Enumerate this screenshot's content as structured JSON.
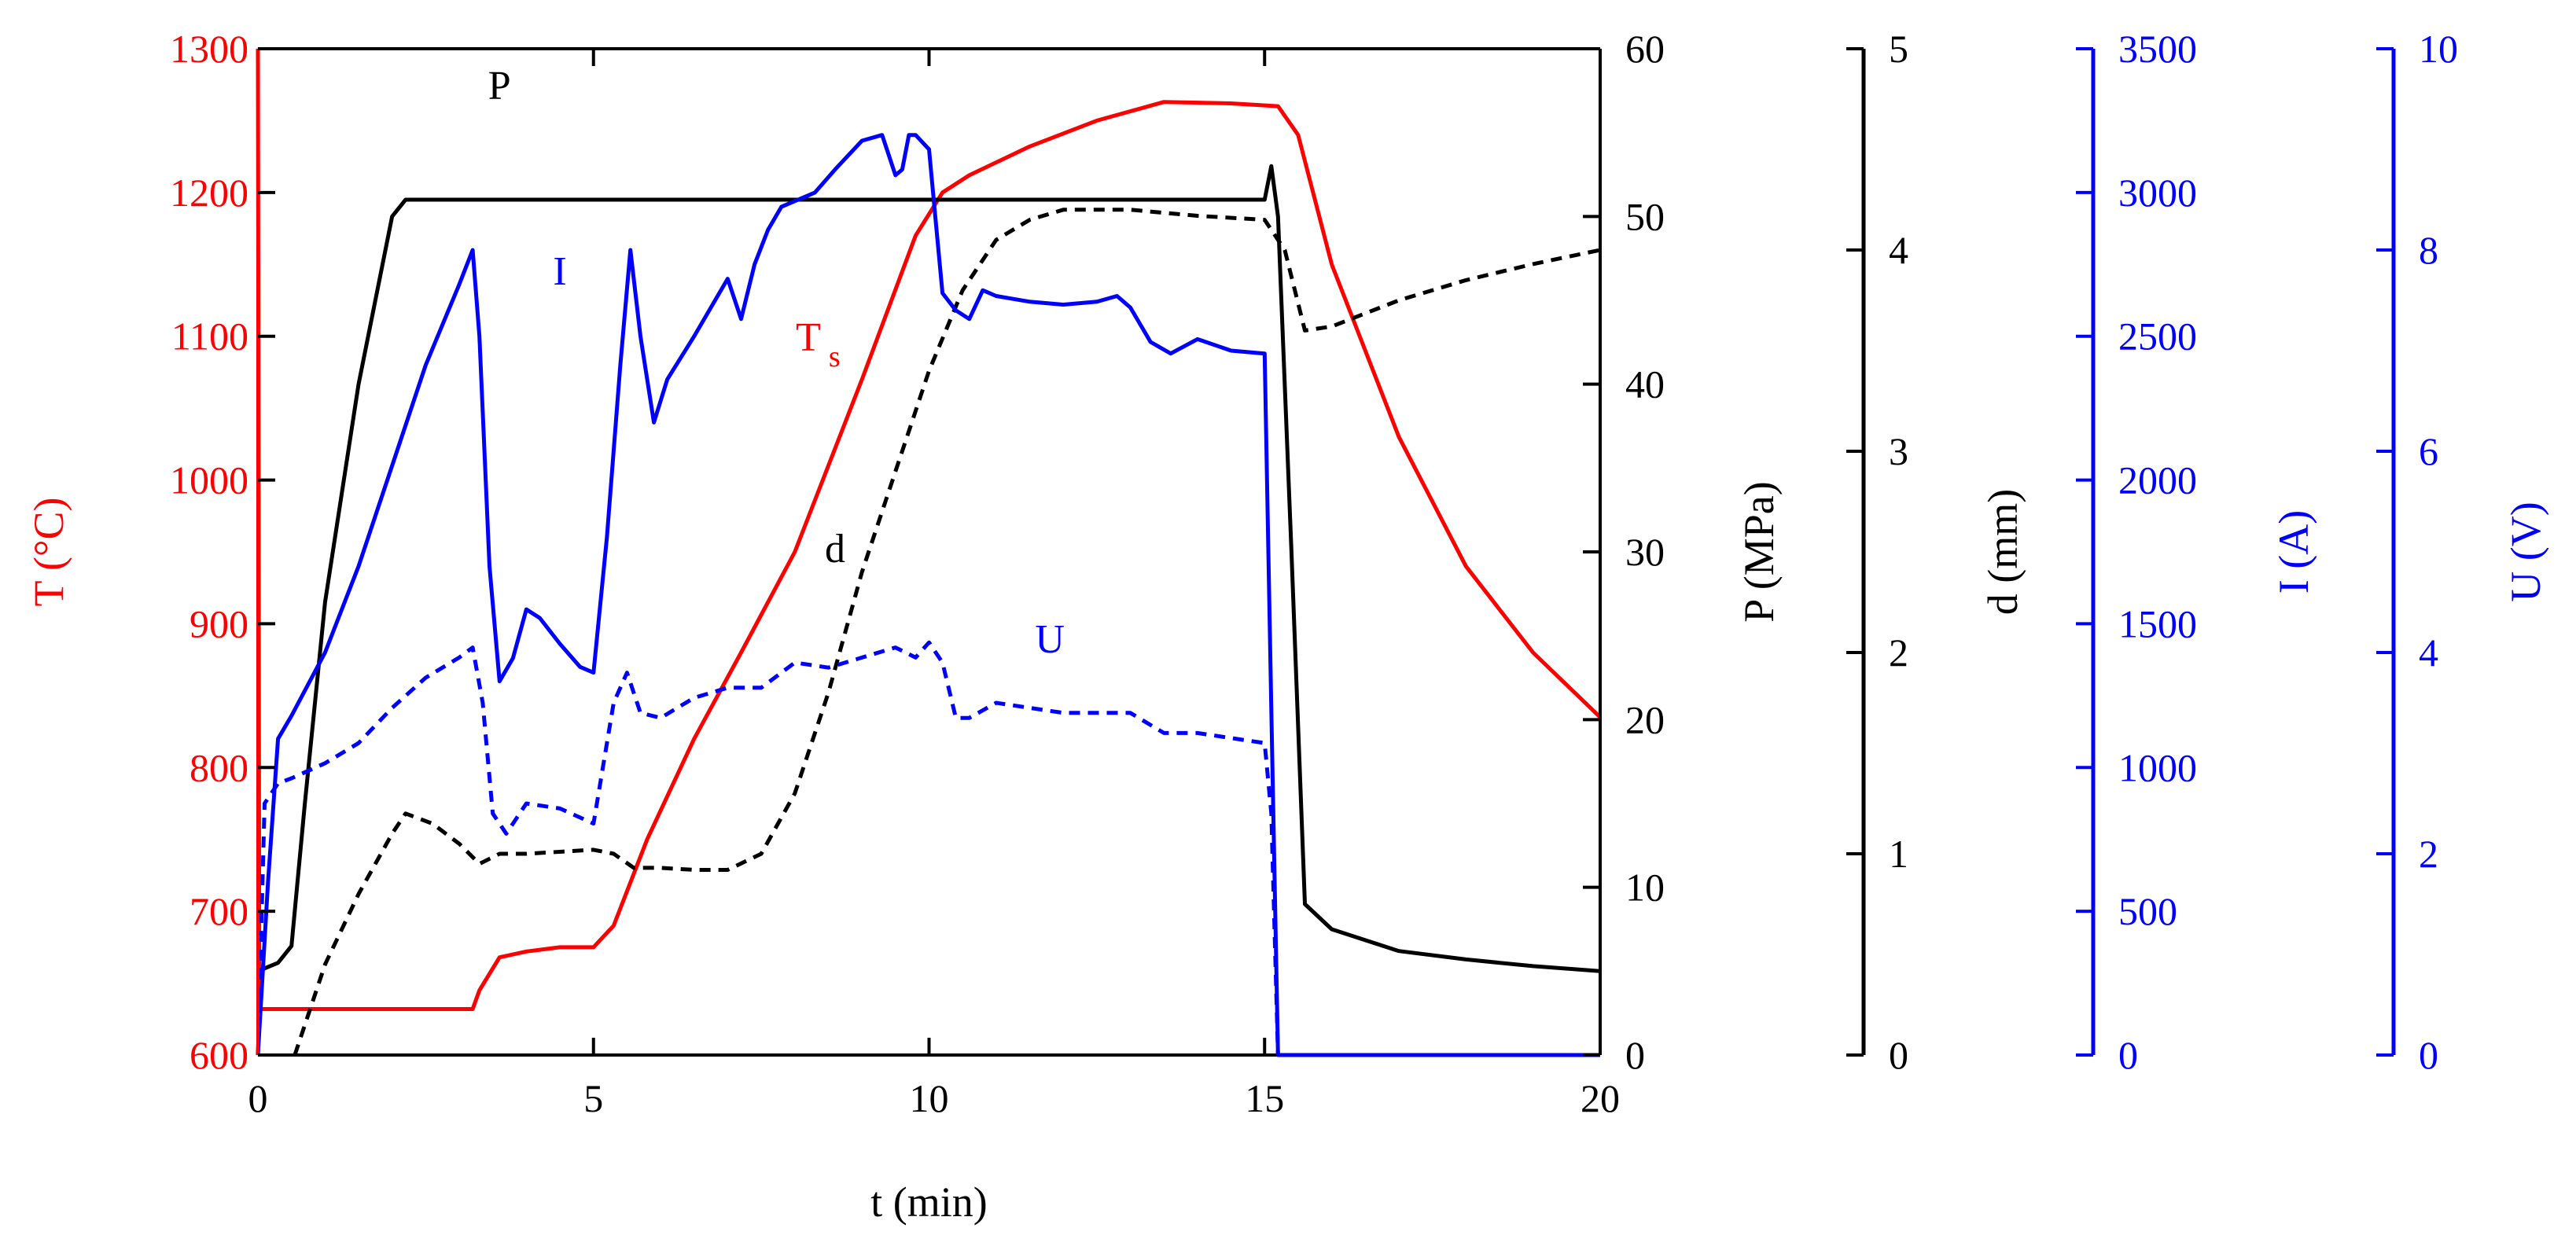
{
  "chart_data": {
    "type": "line",
    "xlabel": "t (min)",
    "xlim": [
      0,
      20
    ],
    "xticks": [
      "0",
      "5",
      "10",
      "15",
      "20"
    ],
    "axes": [
      {
        "key": "T",
        "label": "T (°C)",
        "range": [
          600,
          1300
        ],
        "ticks": [
          "600",
          "700",
          "800",
          "900",
          "1000",
          "1100",
          "1200",
          "1300"
        ],
        "color": "#ff0000",
        "position": "left"
      },
      {
        "key": "P",
        "label": "P (MPa)",
        "range": [
          0,
          60
        ],
        "ticks": [
          "0",
          "10",
          "20",
          "30",
          "40",
          "50",
          "60"
        ],
        "color": "#000000",
        "position": "right"
      },
      {
        "key": "d",
        "label": "d (mm)",
        "range": [
          0,
          5
        ],
        "ticks": [
          "0",
          "1",
          "2",
          "3",
          "4",
          "5"
        ],
        "color": "#000000",
        "position": "right-offset-1"
      },
      {
        "key": "I",
        "label": "I (A)",
        "range": [
          0,
          3500
        ],
        "ticks": [
          "0",
          "500",
          "1000",
          "1500",
          "2000",
          "2500",
          "3000",
          "3500"
        ],
        "color": "#0000ff",
        "position": "right-offset-2"
      },
      {
        "key": "U",
        "label": "U (V)",
        "range": [
          0,
          10
        ],
        "ticks": [
          "0",
          "2",
          "4",
          "6",
          "8",
          "10"
        ],
        "color": "#0000ff",
        "position": "right-offset-3"
      }
    ],
    "series": [
      {
        "name": "Ts",
        "axis": "T",
        "color": "#ff0000",
        "dash": "solid",
        "x": [
          0,
          0.01,
          0.02,
          3.2,
          3.3,
          3.6,
          4.0,
          4.5,
          5.0,
          5.3,
          5.8,
          6.5,
          7.2,
          8.0,
          9.0,
          9.8,
          10.2,
          10.6,
          11.5,
          12.5,
          13.5,
          14.5,
          15.2,
          15.5,
          16.0,
          17.0,
          18.0,
          19.0,
          20.0
        ],
        "y": [
          1300,
          1000,
          632,
          632,
          645,
          668,
          672,
          675,
          675,
          690,
          750,
          820,
          880,
          950,
          1070,
          1170,
          1200,
          1212,
          1232,
          1250,
          1263,
          1262,
          1260,
          1240,
          1150,
          1030,
          940,
          880,
          835
        ]
      },
      {
        "name": "P",
        "axis": "P",
        "color": "#000000",
        "dash": "solid",
        "x": [
          0,
          0.3,
          0.5,
          0.7,
          1.0,
          1.5,
          2.0,
          2.2,
          2.5,
          4.0,
          6.0,
          8.0,
          10.0,
          12.0,
          14.0,
          15.0,
          15.1,
          15.2,
          15.4,
          15.6,
          16.0,
          17.0,
          18.0,
          19.0,
          20.0
        ],
        "y": [
          5,
          5.5,
          6.5,
          15,
          27,
          40,
          50,
          51,
          51,
          51,
          51,
          51,
          51,
          51,
          51,
          51,
          53,
          50,
          30,
          9,
          7.5,
          6.2,
          5.7,
          5.3,
          5
        ]
      },
      {
        "name": "d",
        "axis": "d",
        "color": "#000000",
        "dash": "dashed",
        "x": [
          0.55,
          1.0,
          1.5,
          2.0,
          2.2,
          2.6,
          3.0,
          3.3,
          3.6,
          4.0,
          5.0,
          5.3,
          5.6,
          6.0,
          6.5,
          7.0,
          7.5,
          8.0,
          8.5,
          9.0,
          9.5,
          10.0,
          10.5,
          11.0,
          11.5,
          12.0,
          13.0,
          14.0,
          15.0,
          15.3,
          15.6,
          16.0,
          17.0,
          18.0,
          19.0,
          20.0
        ],
        "y": [
          0,
          0.45,
          0.8,
          1.1,
          1.2,
          1.15,
          1.05,
          0.95,
          1.0,
          1.0,
          1.02,
          1.0,
          0.93,
          0.93,
          0.92,
          0.92,
          1.0,
          1.3,
          1.8,
          2.4,
          2.9,
          3.4,
          3.8,
          4.05,
          4.15,
          4.2,
          4.2,
          4.17,
          4.15,
          4.0,
          3.6,
          3.62,
          3.75,
          3.85,
          3.93,
          4.0
        ]
      },
      {
        "name": "I",
        "axis": "I",
        "color": "#0000ff",
        "dash": "solid",
        "x": [
          0,
          0.15,
          0.3,
          0.5,
          1.0,
          1.5,
          2.0,
          2.5,
          3.0,
          3.2,
          3.3,
          3.45,
          3.6,
          3.8,
          4.0,
          4.2,
          4.5,
          4.8,
          5.0,
          5.2,
          5.4,
          5.55,
          5.7,
          5.9,
          6.1,
          6.5,
          7.0,
          7.2,
          7.4,
          7.6,
          7.8,
          8.0,
          8.3,
          8.6,
          9.0,
          9.3,
          9.5,
          9.6,
          9.7,
          9.8,
          10.0,
          10.1,
          10.2,
          10.4,
          10.6,
          10.8,
          11.0,
          11.5,
          12.0,
          12.5,
          12.8,
          13.0,
          13.3,
          13.6,
          14.0,
          14.5,
          15.0,
          15.1,
          15.2,
          15.4,
          16.0,
          20.0
        ],
        "y": [
          0,
          600,
          1100,
          1180,
          1400,
          1700,
          2050,
          2400,
          2680,
          2800,
          2500,
          1700,
          1300,
          1380,
          1550,
          1520,
          1430,
          1350,
          1330,
          1800,
          2400,
          2800,
          2500,
          2200,
          2350,
          2500,
          2700,
          2560,
          2750,
          2870,
          2950,
          2970,
          3000,
          3080,
          3180,
          3200,
          3060,
          3080,
          3200,
          3200,
          3150,
          2900,
          2650,
          2590,
          2560,
          2660,
          2640,
          2620,
          2610,
          2620,
          2640,
          2600,
          2480,
          2440,
          2490,
          2450,
          2440,
          1200,
          0,
          0,
          0,
          0
        ]
      },
      {
        "name": "U",
        "axis": "U",
        "color": "#0000ff",
        "dash": "dashed",
        "x": [
          0,
          0.1,
          0.3,
          0.5,
          1.0,
          1.5,
          2.0,
          2.5,
          3.0,
          3.2,
          3.35,
          3.5,
          3.7,
          4.0,
          4.5,
          5.0,
          5.3,
          5.5,
          5.7,
          6.0,
          6.5,
          7.0,
          7.5,
          8.0,
          8.5,
          9.0,
          9.5,
          9.8,
          10.0,
          10.2,
          10.4,
          10.6,
          11.0,
          12.0,
          13.0,
          13.5,
          14.0,
          15.0,
          15.1,
          15.2,
          15.4,
          16.0,
          20.0
        ],
        "y": [
          0,
          2.5,
          2.7,
          2.75,
          2.9,
          3.1,
          3.45,
          3.75,
          3.95,
          4.05,
          3.5,
          2.4,
          2.2,
          2.5,
          2.45,
          2.3,
          3.5,
          3.8,
          3.4,
          3.35,
          3.55,
          3.65,
          3.65,
          3.9,
          3.85,
          3.95,
          4.05,
          3.95,
          4.1,
          3.9,
          3.35,
          3.35,
          3.5,
          3.4,
          3.4,
          3.2,
          3.2,
          3.1,
          2.4,
          0,
          0,
          0,
          0
        ]
      }
    ],
    "annotations": [
      {
        "text": "P",
        "series": "P",
        "color": "#000000"
      },
      {
        "text": "I",
        "series": "I",
        "color": "#0000ff"
      },
      {
        "text": "T",
        "subscript": "s",
        "series": "Ts",
        "color": "#ff0000"
      },
      {
        "text": "d",
        "series": "d",
        "color": "#000000"
      },
      {
        "text": "U",
        "series": "U",
        "color": "#0000ff"
      }
    ]
  }
}
